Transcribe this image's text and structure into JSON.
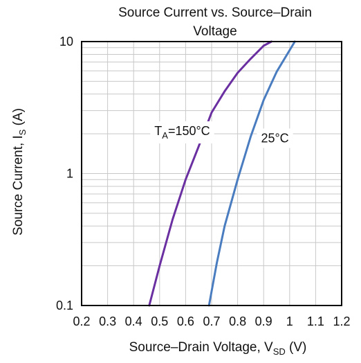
{
  "chart_data": {
    "type": "line",
    "title_lines": [
      "Source Current vs. Source–Drain",
      "Voltage"
    ],
    "xlabel": {
      "main": "Source–Drain Voltage, V",
      "sub": "SD",
      "unit": " (V)"
    },
    "ylabel": {
      "main": "Source Current, I",
      "sub": "S",
      "unit": " (A)"
    },
    "x_scale": "linear",
    "y_scale": "log",
    "xlim": [
      0.2,
      1.2
    ],
    "ylim": [
      0.1,
      10
    ],
    "x_ticks": [
      0.2,
      0.3,
      0.4,
      0.5,
      0.6,
      0.7,
      0.8,
      0.9,
      1,
      1.1,
      1.2
    ],
    "x_tick_labels": [
      "0.2",
      "0.3",
      "0.4",
      "0.5",
      "0.6",
      "0.7",
      "0.8",
      "0.9",
      "1",
      "1.1",
      "1.2"
    ],
    "y_ticks": [
      0.1,
      1,
      10
    ],
    "y_tick_labels": [
      "0.1",
      "1",
      "10"
    ],
    "grid": true,
    "series": [
      {
        "color": "#6a2fa0",
        "x": [
          0.46,
          0.5,
          0.55,
          0.6,
          0.65,
          0.7,
          0.75,
          0.8,
          0.85,
          0.9,
          0.93
        ],
        "y": [
          0.1,
          0.2,
          0.45,
          0.9,
          1.6,
          2.9,
          4.2,
          5.8,
          7.4,
          9.3,
          10
        ]
      },
      {
        "color": "#4a7cc0",
        "x": [
          0.69,
          0.72,
          0.75,
          0.8,
          0.85,
          0.9,
          0.95,
          1.0,
          1.02
        ],
        "y": [
          0.1,
          0.21,
          0.4,
          0.9,
          1.9,
          3.6,
          5.9,
          8.6,
          10
        ]
      }
    ],
    "annotations": [
      {
        "text_main": "T",
        "text_sub": "A",
        "text_rest": "=150°C",
        "x": 0.48,
        "y": 2.1
      },
      {
        "text_main": "25°C",
        "x": 0.89,
        "y": 1.85
      }
    ]
  }
}
